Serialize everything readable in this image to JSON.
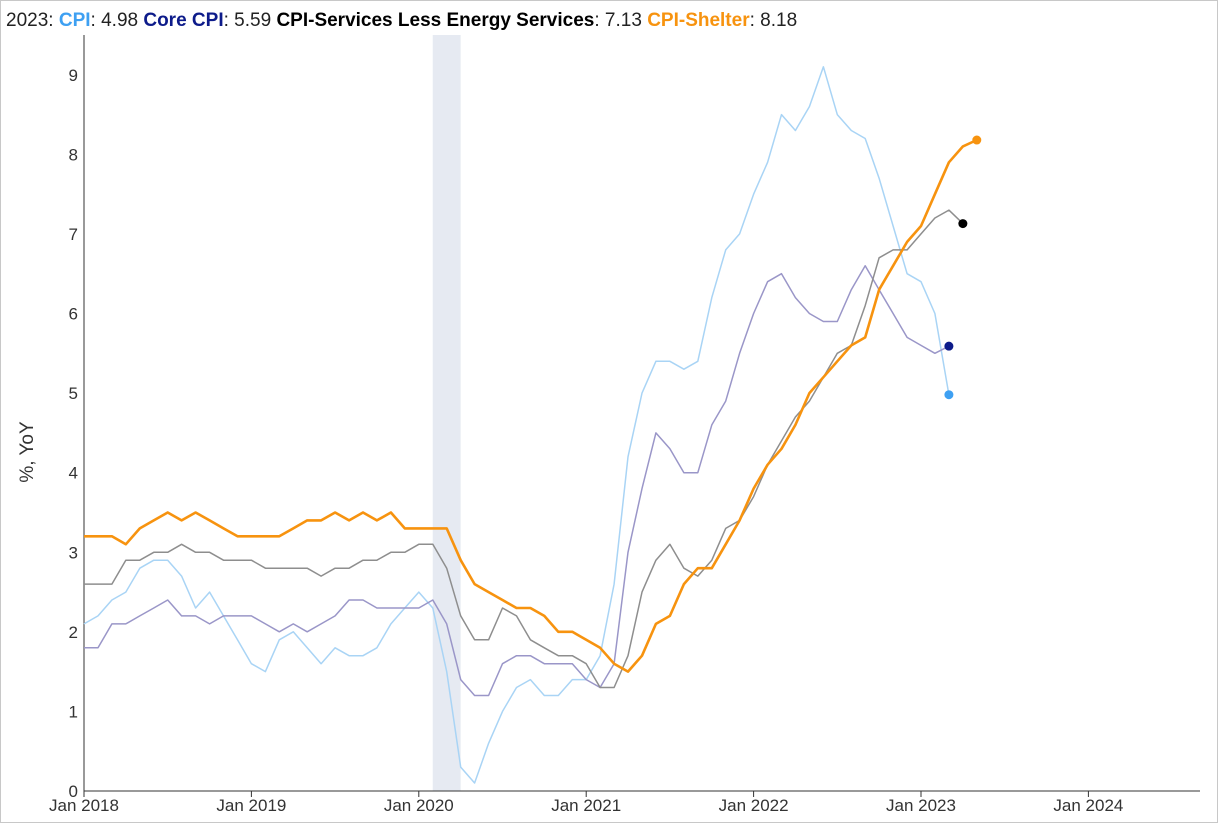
{
  "legend": {
    "prefix": "2023",
    "items": [
      {
        "name": "CPI",
        "value": "4.98",
        "color": "#3ea0f2"
      },
      {
        "name": "Core CPI",
        "value": "5.59",
        "color": "#0d1b8a"
      },
      {
        "name": "CPI-Services Less Energy Services",
        "value": "7.13",
        "color": "#000000"
      },
      {
        "name": "CPI-Shelter",
        "value": "8.18",
        "color": "#f7930f"
      }
    ]
  },
  "chart_data": {
    "type": "line",
    "ylabel": "%, YoY",
    "ylim": [
      0,
      9.5
    ],
    "yticks": [
      0,
      1,
      2,
      3,
      4,
      5,
      6,
      7,
      8,
      9
    ],
    "xlim": [
      "2018-01",
      "2024-09"
    ],
    "xticks": [
      "Jan 2018",
      "Jan 2019",
      "Jan 2020",
      "Jan 2021",
      "Jan 2022",
      "Jan 2023",
      "Jan 2024"
    ],
    "recession": [
      "2020-02",
      "2020-04"
    ],
    "start": "2018-01",
    "series": [
      {
        "name": "CPI",
        "color": "#a9d4f5",
        "end_color": "#3ea0f2",
        "values": [
          2.1,
          2.2,
          2.4,
          2.5,
          2.8,
          2.9,
          2.9,
          2.7,
          2.3,
          2.5,
          2.2,
          1.9,
          1.6,
          1.5,
          1.9,
          2.0,
          1.8,
          1.6,
          1.8,
          1.7,
          1.7,
          1.8,
          2.1,
          2.3,
          2.5,
          2.3,
          1.5,
          0.3,
          0.1,
          0.6,
          1.0,
          1.3,
          1.4,
          1.2,
          1.2,
          1.4,
          1.4,
          1.7,
          2.6,
          4.2,
          5.0,
          5.4,
          5.4,
          5.3,
          5.4,
          6.2,
          6.8,
          7.0,
          7.5,
          7.9,
          8.5,
          8.3,
          8.6,
          9.1,
          8.5,
          8.3,
          8.2,
          7.7,
          7.1,
          6.5,
          6.4,
          6.0,
          4.98
        ]
      },
      {
        "name": "Core CPI",
        "color": "#9a96c8",
        "end_color": "#0d1b8a",
        "values": [
          1.8,
          1.8,
          2.1,
          2.1,
          2.2,
          2.3,
          2.4,
          2.2,
          2.2,
          2.1,
          2.2,
          2.2,
          2.2,
          2.1,
          2.0,
          2.1,
          2.0,
          2.1,
          2.2,
          2.4,
          2.4,
          2.3,
          2.3,
          2.3,
          2.3,
          2.4,
          2.1,
          1.4,
          1.2,
          1.2,
          1.6,
          1.7,
          1.7,
          1.6,
          1.6,
          1.6,
          1.4,
          1.3,
          1.6,
          3.0,
          3.8,
          4.5,
          4.3,
          4.0,
          4.0,
          4.6,
          4.9,
          5.5,
          6.0,
          6.4,
          6.5,
          6.2,
          6.0,
          5.9,
          5.9,
          6.3,
          6.6,
          6.3,
          6.0,
          5.7,
          5.6,
          5.5,
          5.59
        ]
      },
      {
        "name": "CPI-Services Less Energy Services",
        "color": "#8e8e8e",
        "end_color": "#000000",
        "values": [
          2.6,
          2.6,
          2.6,
          2.9,
          2.9,
          3.0,
          3.0,
          3.1,
          3.0,
          3.0,
          2.9,
          2.9,
          2.9,
          2.8,
          2.8,
          2.8,
          2.8,
          2.7,
          2.8,
          2.8,
          2.9,
          2.9,
          3.0,
          3.0,
          3.1,
          3.1,
          2.8,
          2.2,
          1.9,
          1.9,
          2.3,
          2.2,
          1.9,
          1.8,
          1.7,
          1.7,
          1.6,
          1.3,
          1.3,
          1.7,
          2.5,
          2.9,
          3.1,
          2.8,
          2.7,
          2.9,
          3.3,
          3.4,
          3.7,
          4.1,
          4.4,
          4.7,
          4.9,
          5.2,
          5.5,
          5.6,
          6.1,
          6.7,
          6.8,
          6.8,
          7.0,
          7.2,
          7.3,
          7.13
        ]
      },
      {
        "name": "CPI-Shelter",
        "color": "#f7930f",
        "end_color": "#f7930f",
        "values": [
          3.2,
          3.2,
          3.2,
          3.1,
          3.3,
          3.4,
          3.5,
          3.4,
          3.5,
          3.4,
          3.3,
          3.2,
          3.2,
          3.2,
          3.2,
          3.3,
          3.4,
          3.4,
          3.5,
          3.4,
          3.5,
          3.4,
          3.5,
          3.3,
          3.3,
          3.3,
          3.3,
          2.9,
          2.6,
          2.5,
          2.4,
          2.3,
          2.3,
          2.2,
          2.0,
          2.0,
          1.9,
          1.8,
          1.6,
          1.5,
          1.7,
          2.1,
          2.2,
          2.6,
          2.8,
          2.8,
          3.1,
          3.4,
          3.8,
          4.1,
          4.3,
          4.6,
          5.0,
          5.2,
          5.4,
          5.6,
          5.7,
          6.3,
          6.6,
          6.9,
          7.1,
          7.5,
          7.9,
          8.1,
          8.18
        ]
      }
    ]
  }
}
